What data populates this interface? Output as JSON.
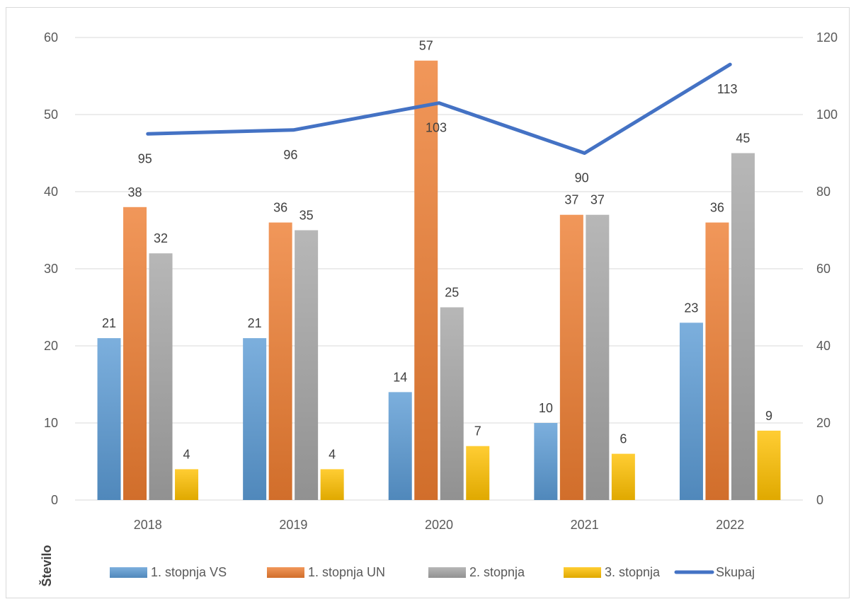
{
  "chart_data": {
    "type": "bar",
    "categories": [
      "2018",
      "2019",
      "2020",
      "2021",
      "2022"
    ],
    "series": [
      {
        "name": "1. stopnja VS",
        "values": [
          21,
          21,
          14,
          10,
          23
        ],
        "color": "#5b9bd5",
        "kind": "bar",
        "axis": "left"
      },
      {
        "name": "1. stopnja UN",
        "values": [
          38,
          36,
          57,
          37,
          36
        ],
        "color": "#ed7d31",
        "kind": "bar",
        "axis": "left"
      },
      {
        "name": "2. stopnja",
        "values": [
          32,
          35,
          25,
          37,
          45
        ],
        "color": "#a5a5a5",
        "kind": "bar",
        "axis": "left"
      },
      {
        "name": "3. stopnja",
        "values": [
          4,
          4,
          7,
          6,
          9
        ],
        "color": "#ffc000",
        "kind": "bar",
        "axis": "left"
      },
      {
        "name": "Skupaj",
        "values": [
          95,
          96,
          103,
          90,
          113
        ],
        "color": "#4472c4",
        "kind": "line",
        "axis": "right"
      }
    ],
    "ylim_left": [
      0,
      60
    ],
    "yticks_left": [
      "0",
      "10",
      "20",
      "30",
      "40",
      "50",
      "60"
    ],
    "ylim_right": [
      0,
      120
    ],
    "yticks_right": [
      "0",
      "20",
      "40",
      "60",
      "80",
      "100",
      "120"
    ],
    "ylabel": "Število",
    "grid": true,
    "legend_position": "bottom"
  }
}
